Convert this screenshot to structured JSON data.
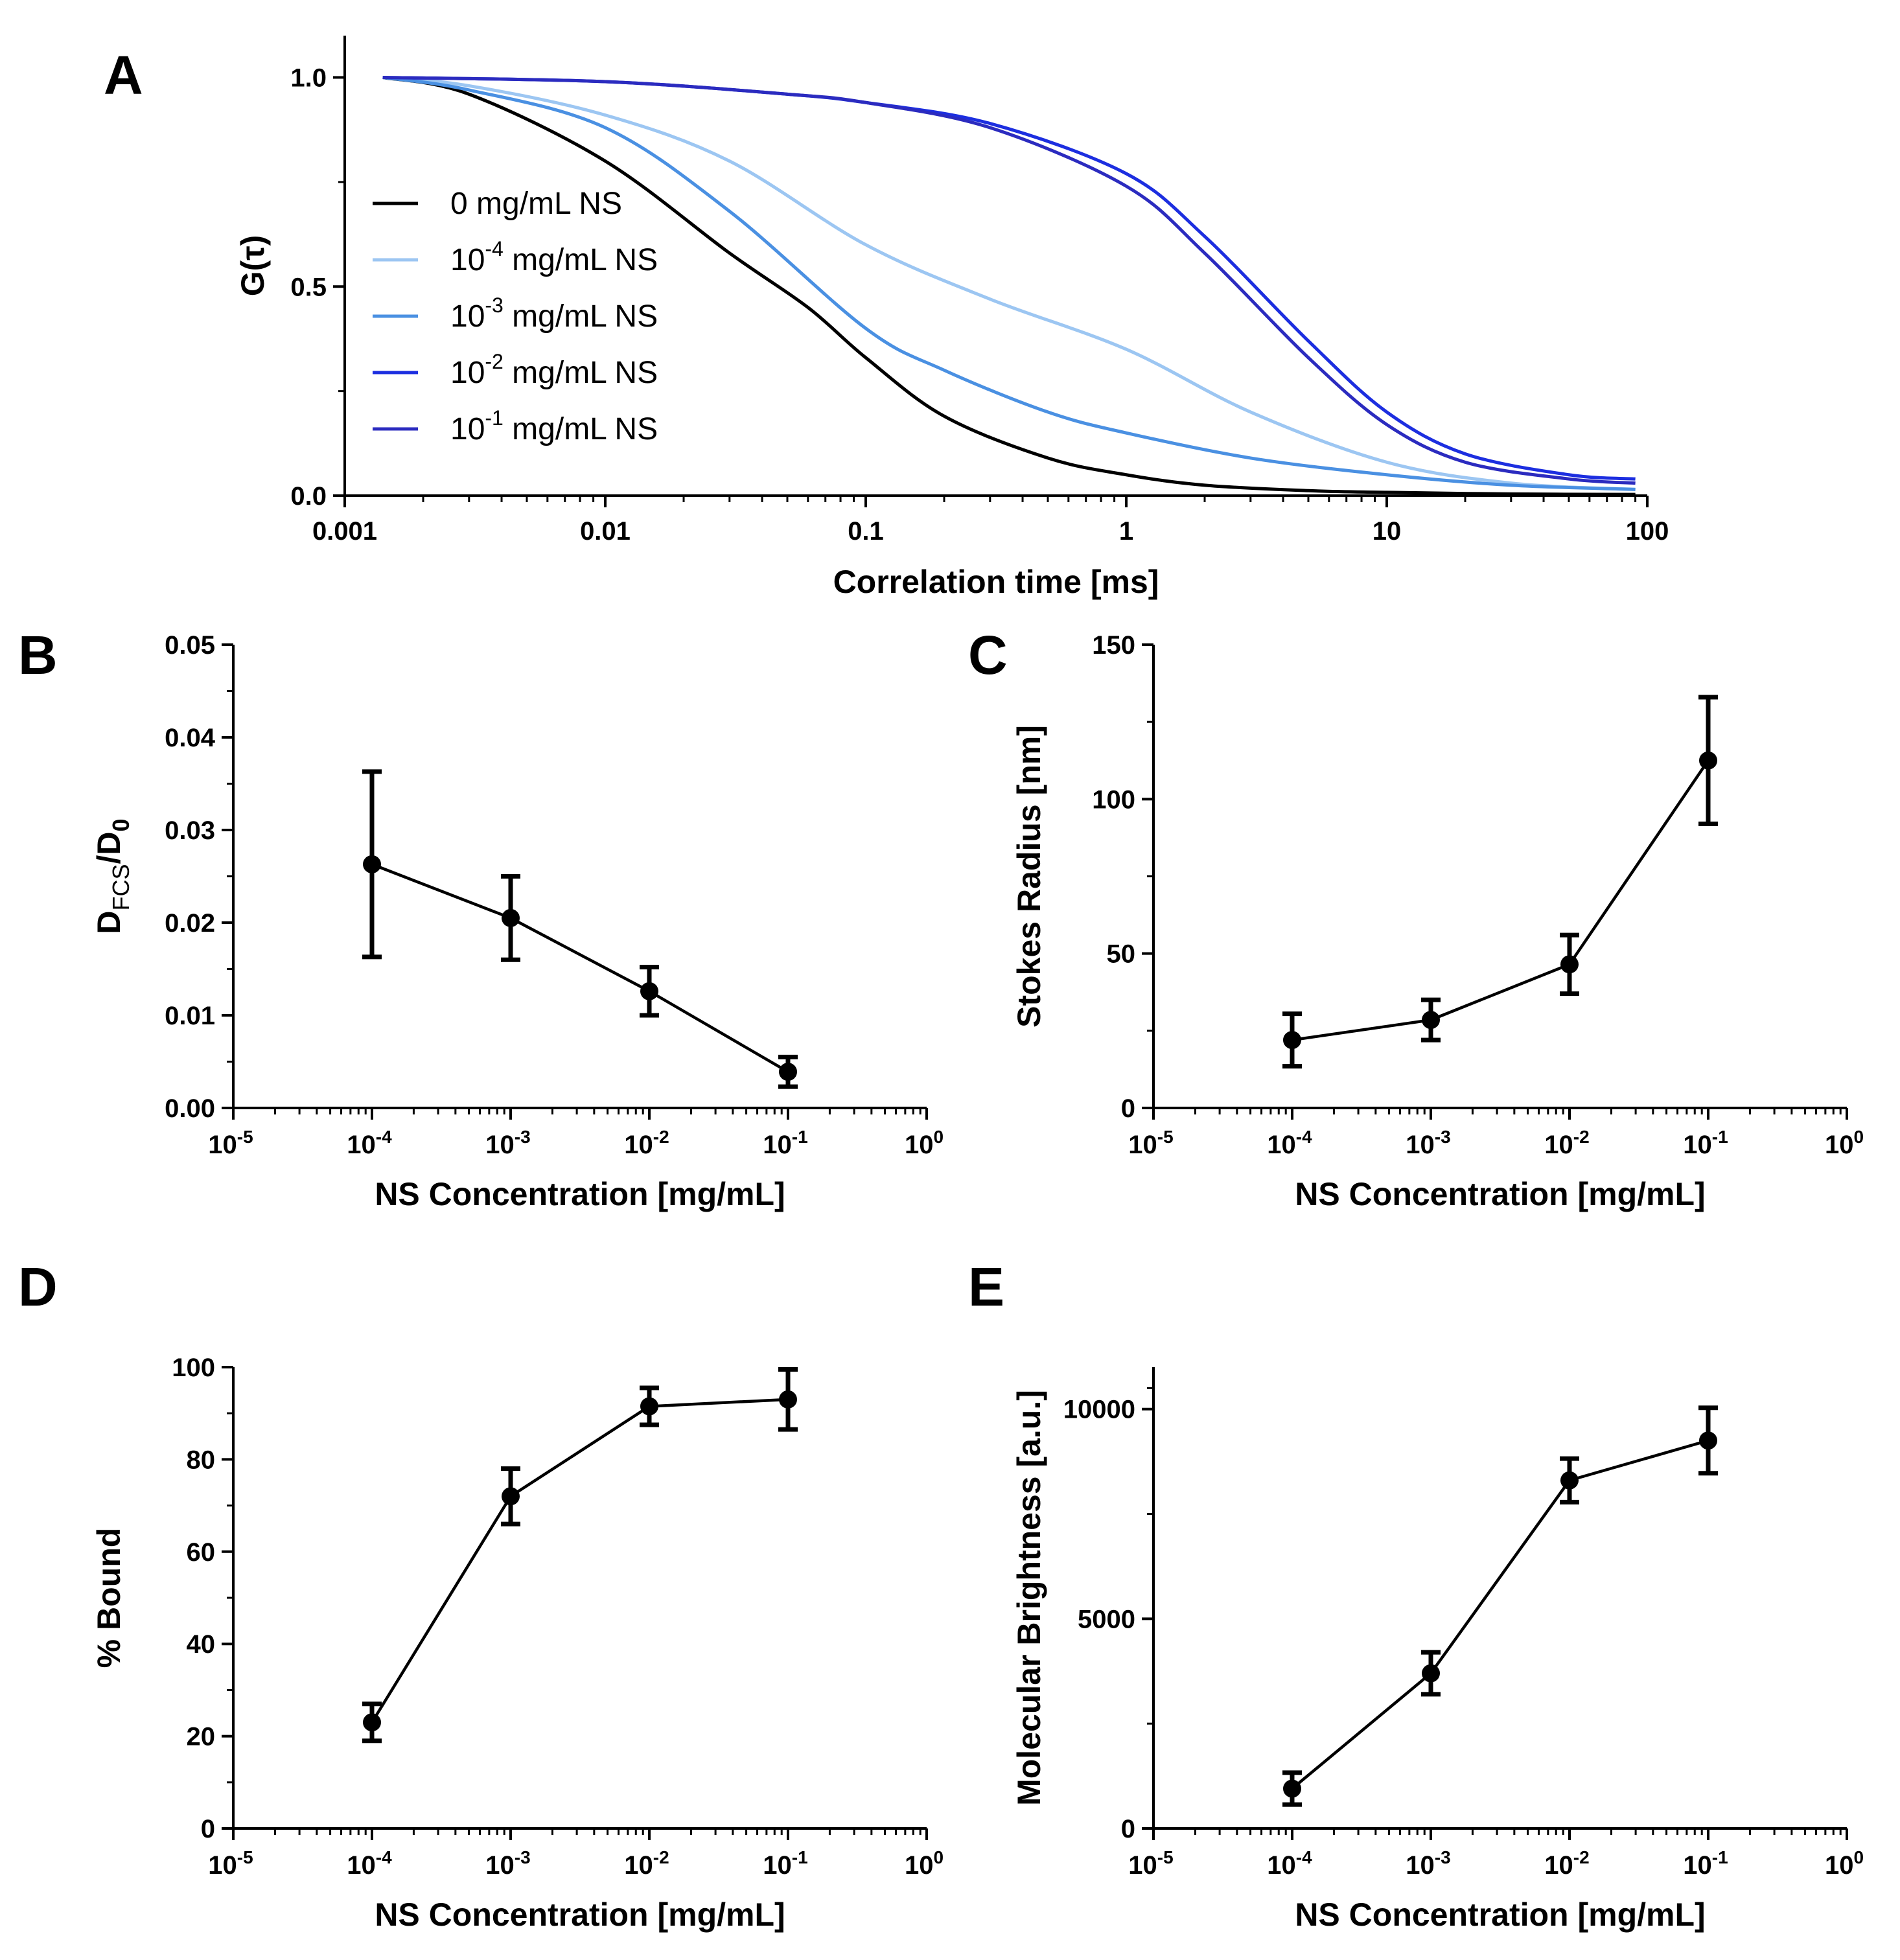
{
  "chart_data": [
    {
      "id": "A",
      "type": "line",
      "panel_label": "A",
      "xlabel": "Correlation time [ms]",
      "ylabel": "G(τ)",
      "xscale": "log",
      "xlim": [
        0.001,
        100
      ],
      "ylim": [
        0,
        1.1
      ],
      "xticks": [
        "0.001",
        "0.01",
        "0.1",
        "1",
        "10",
        "100"
      ],
      "yticks": [
        "0.0",
        "0.5",
        "1.0"
      ],
      "legend_position": "left-middle",
      "series": [
        {
          "name": "0 mg/mL NS",
          "base": "0 mg/mL NS",
          "exp": "",
          "unit": "",
          "color": "#000000",
          "x": [
            0.0014,
            0.003,
            0.01,
            0.03,
            0.06,
            0.1,
            0.2,
            0.5,
            1,
            2,
            5,
            10,
            30,
            90
          ],
          "y": [
            1.0,
            0.96,
            0.8,
            0.58,
            0.45,
            0.33,
            0.19,
            0.09,
            0.05,
            0.025,
            0.012,
            0.008,
            0.004,
            0.003
          ]
        },
        {
          "name": "10-4 mg/mL NS",
          "base": "10",
          "exp": "-4",
          "unit": " mg/mL NS",
          "color": "#9cc6f2",
          "x": [
            0.0014,
            0.003,
            0.01,
            0.03,
            0.1,
            0.3,
            1,
            3,
            10,
            30,
            90
          ],
          "y": [
            1.0,
            0.98,
            0.91,
            0.8,
            0.6,
            0.47,
            0.35,
            0.2,
            0.08,
            0.03,
            0.015
          ]
        },
        {
          "name": "10-3 mg/mL NS",
          "base": "10",
          "exp": "-3",
          "unit": " mg/mL NS",
          "color": "#4a90e2",
          "x": [
            0.0014,
            0.003,
            0.01,
            0.03,
            0.1,
            0.2,
            0.5,
            1,
            3,
            10,
            30,
            90
          ],
          "y": [
            1.0,
            0.97,
            0.88,
            0.68,
            0.4,
            0.3,
            0.2,
            0.15,
            0.09,
            0.05,
            0.025,
            0.015
          ]
        },
        {
          "name": "10-2 mg/mL NS",
          "base": "10",
          "exp": "-2",
          "unit": " mg/mL NS",
          "color": "#1c2ee0",
          "x": [
            0.0014,
            0.01,
            0.05,
            0.1,
            0.3,
            1,
            2,
            5,
            10,
            20,
            50,
            90
          ],
          "y": [
            1.0,
            0.99,
            0.96,
            0.94,
            0.89,
            0.77,
            0.62,
            0.37,
            0.2,
            0.1,
            0.05,
            0.04
          ]
        },
        {
          "name": "10-1 mg/mL NS",
          "base": "10",
          "exp": "-1",
          "unit": " mg/mL NS",
          "color": "#2b2bbf",
          "x": [
            0.0014,
            0.01,
            0.05,
            0.1,
            0.3,
            1,
            2,
            5,
            10,
            20,
            50,
            90
          ],
          "y": [
            1.0,
            0.99,
            0.96,
            0.94,
            0.88,
            0.74,
            0.58,
            0.33,
            0.17,
            0.08,
            0.04,
            0.03
          ]
        }
      ]
    },
    {
      "id": "B",
      "type": "line",
      "panel_label": "B",
      "xlabel": "NS Concentration [mg/mL]",
      "ylabel": {
        "main": "D",
        "sub1": "FCS",
        "mid": "/D",
        "sub2": "0"
      },
      "xscale": "log",
      "xlim_exp": [
        -5,
        0
      ],
      "ylim": [
        0,
        0.05
      ],
      "yticks": [
        "0.00",
        "0.01",
        "0.02",
        "0.03",
        "0.04",
        "0.05"
      ],
      "xtick_exps": [
        "-5",
        "-4",
        "-3",
        "-2",
        "-1",
        "0"
      ],
      "x": [
        0.0001,
        0.001,
        0.01,
        0.1
      ],
      "y": [
        0.0263,
        0.0205,
        0.0126,
        0.0039
      ],
      "yerr": [
        0.01,
        0.0045,
        0.0026,
        0.0016
      ]
    },
    {
      "id": "C",
      "type": "line",
      "panel_label": "C",
      "xlabel": "NS Concentration [mg/mL]",
      "ylabel": "Stokes  Radius [nm]",
      "xscale": "log",
      "xlim_exp": [
        -5,
        0
      ],
      "ylim": [
        0,
        150
      ],
      "yticks": [
        "0",
        "50",
        "100",
        "150"
      ],
      "xtick_exps": [
        "-5",
        "-4",
        "-3",
        "-2",
        "-1",
        "0"
      ],
      "x": [
        0.0001,
        0.001,
        0.01,
        0.1
      ],
      "y": [
        22,
        28.5,
        46.5,
        112.5
      ],
      "yerr": [
        8.5,
        6.5,
        9.5,
        20.5
      ]
    },
    {
      "id": "D",
      "type": "line",
      "panel_label": "D",
      "xlabel": "NS Concentration [mg/mL]",
      "ylabel": "% Bound",
      "xscale": "log",
      "xlim_exp": [
        -5,
        0
      ],
      "ylim": [
        0,
        100
      ],
      "yticks": [
        "0",
        "20",
        "40",
        "60",
        "80",
        "100"
      ],
      "xtick_exps": [
        "-5",
        "-4",
        "-3",
        "-2",
        "-1",
        "0"
      ],
      "x": [
        0.0001,
        0.001,
        0.01,
        0.1
      ],
      "y": [
        23,
        72,
        91.5,
        93
      ],
      "yerr": [
        4,
        6,
        4,
        6.5
      ]
    },
    {
      "id": "E",
      "type": "line",
      "panel_label": "E",
      "xlabel": "NS Concentration [mg/mL]",
      "ylabel": "Molecular Brightness [a.u.]",
      "xscale": "log",
      "xlim_exp": [
        -5,
        0
      ],
      "ylim": [
        0,
        11000
      ],
      "yticks": [
        "0",
        "5000",
        "10000"
      ],
      "xtick_exps": [
        "-5",
        "-4",
        "-3",
        "-2",
        "-1",
        "0"
      ],
      "x": [
        0.0001,
        0.001,
        0.01,
        0.1
      ],
      "y": [
        950,
        3700,
        8300,
        9250
      ],
      "yerr": [
        380,
        500,
        520,
        780
      ]
    }
  ]
}
